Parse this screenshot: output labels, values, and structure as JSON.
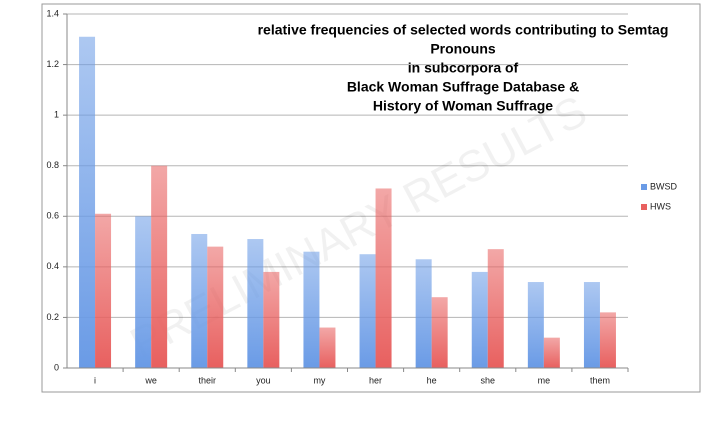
{
  "chart_data": {
    "type": "bar",
    "title": [
      "relative frequencies of selected words contributing to Semtag",
      "Pronouns",
      "in subcorpora of",
      "Black Woman Suffrage Database &",
      "History of Woman Suffrage"
    ],
    "watermark": "PRELIMINARY RESULTS",
    "categories": [
      "i",
      "we",
      "their",
      "you",
      "my",
      "her",
      "he",
      "she",
      "me",
      "them"
    ],
    "series": [
      {
        "name": "BWSD",
        "color": "#6a9be6",
        "values": [
          1.31,
          0.6,
          0.53,
          0.51,
          0.46,
          0.45,
          0.43,
          0.38,
          0.34,
          0.34
        ]
      },
      {
        "name": "HWS",
        "color": "#e8605f",
        "values": [
          0.61,
          0.8,
          0.48,
          0.38,
          0.16,
          0.71,
          0.28,
          0.47,
          0.12,
          0.22
        ]
      }
    ],
    "ylim": [
      0,
      1.4
    ],
    "yticks": [
      0,
      0.2,
      0.4,
      0.6,
      0.8,
      1,
      1.2,
      1.4
    ],
    "grid": true,
    "legend": "right"
  }
}
